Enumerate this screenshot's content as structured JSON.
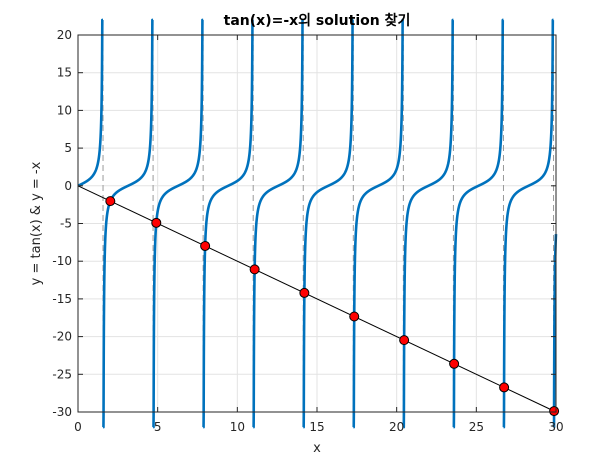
{
  "chart_data": {
    "type": "line",
    "title": "tan(x)=-x의 solution 찾기",
    "xlabel": "x",
    "ylabel": "y = tan(x) & y = -x",
    "xlim": [
      0,
      30
    ],
    "ylim": [
      -30,
      20
    ],
    "xticks": [
      "0",
      "5",
      "10",
      "15",
      "20",
      "25",
      "30"
    ],
    "yticks": [
      "20",
      "15",
      "10",
      "5",
      "0",
      "-5",
      "-10",
      "-15",
      "-20",
      "-25",
      "-30"
    ],
    "grid": true,
    "series": [
      {
        "function": "tan(x)",
        "color": "#0072BD"
      },
      {
        "function": "-x",
        "color": "#000000"
      }
    ],
    "asymptotes_x": [
      1.5708,
      4.7124,
      7.854,
      10.9956,
      14.1372,
      17.2788,
      20.4204,
      23.5619,
      26.7035,
      29.8451
    ],
    "solutions": {
      "color": "#ff0000",
      "x": [
        2.029,
        4.913,
        7.979,
        11.086,
        14.207,
        17.336,
        20.469,
        23.605,
        26.742,
        29.88
      ],
      "y": [
        -2.029,
        -4.913,
        -7.979,
        -11.086,
        -14.207,
        -17.336,
        -20.469,
        -23.605,
        -26.742,
        -29.88
      ]
    }
  }
}
